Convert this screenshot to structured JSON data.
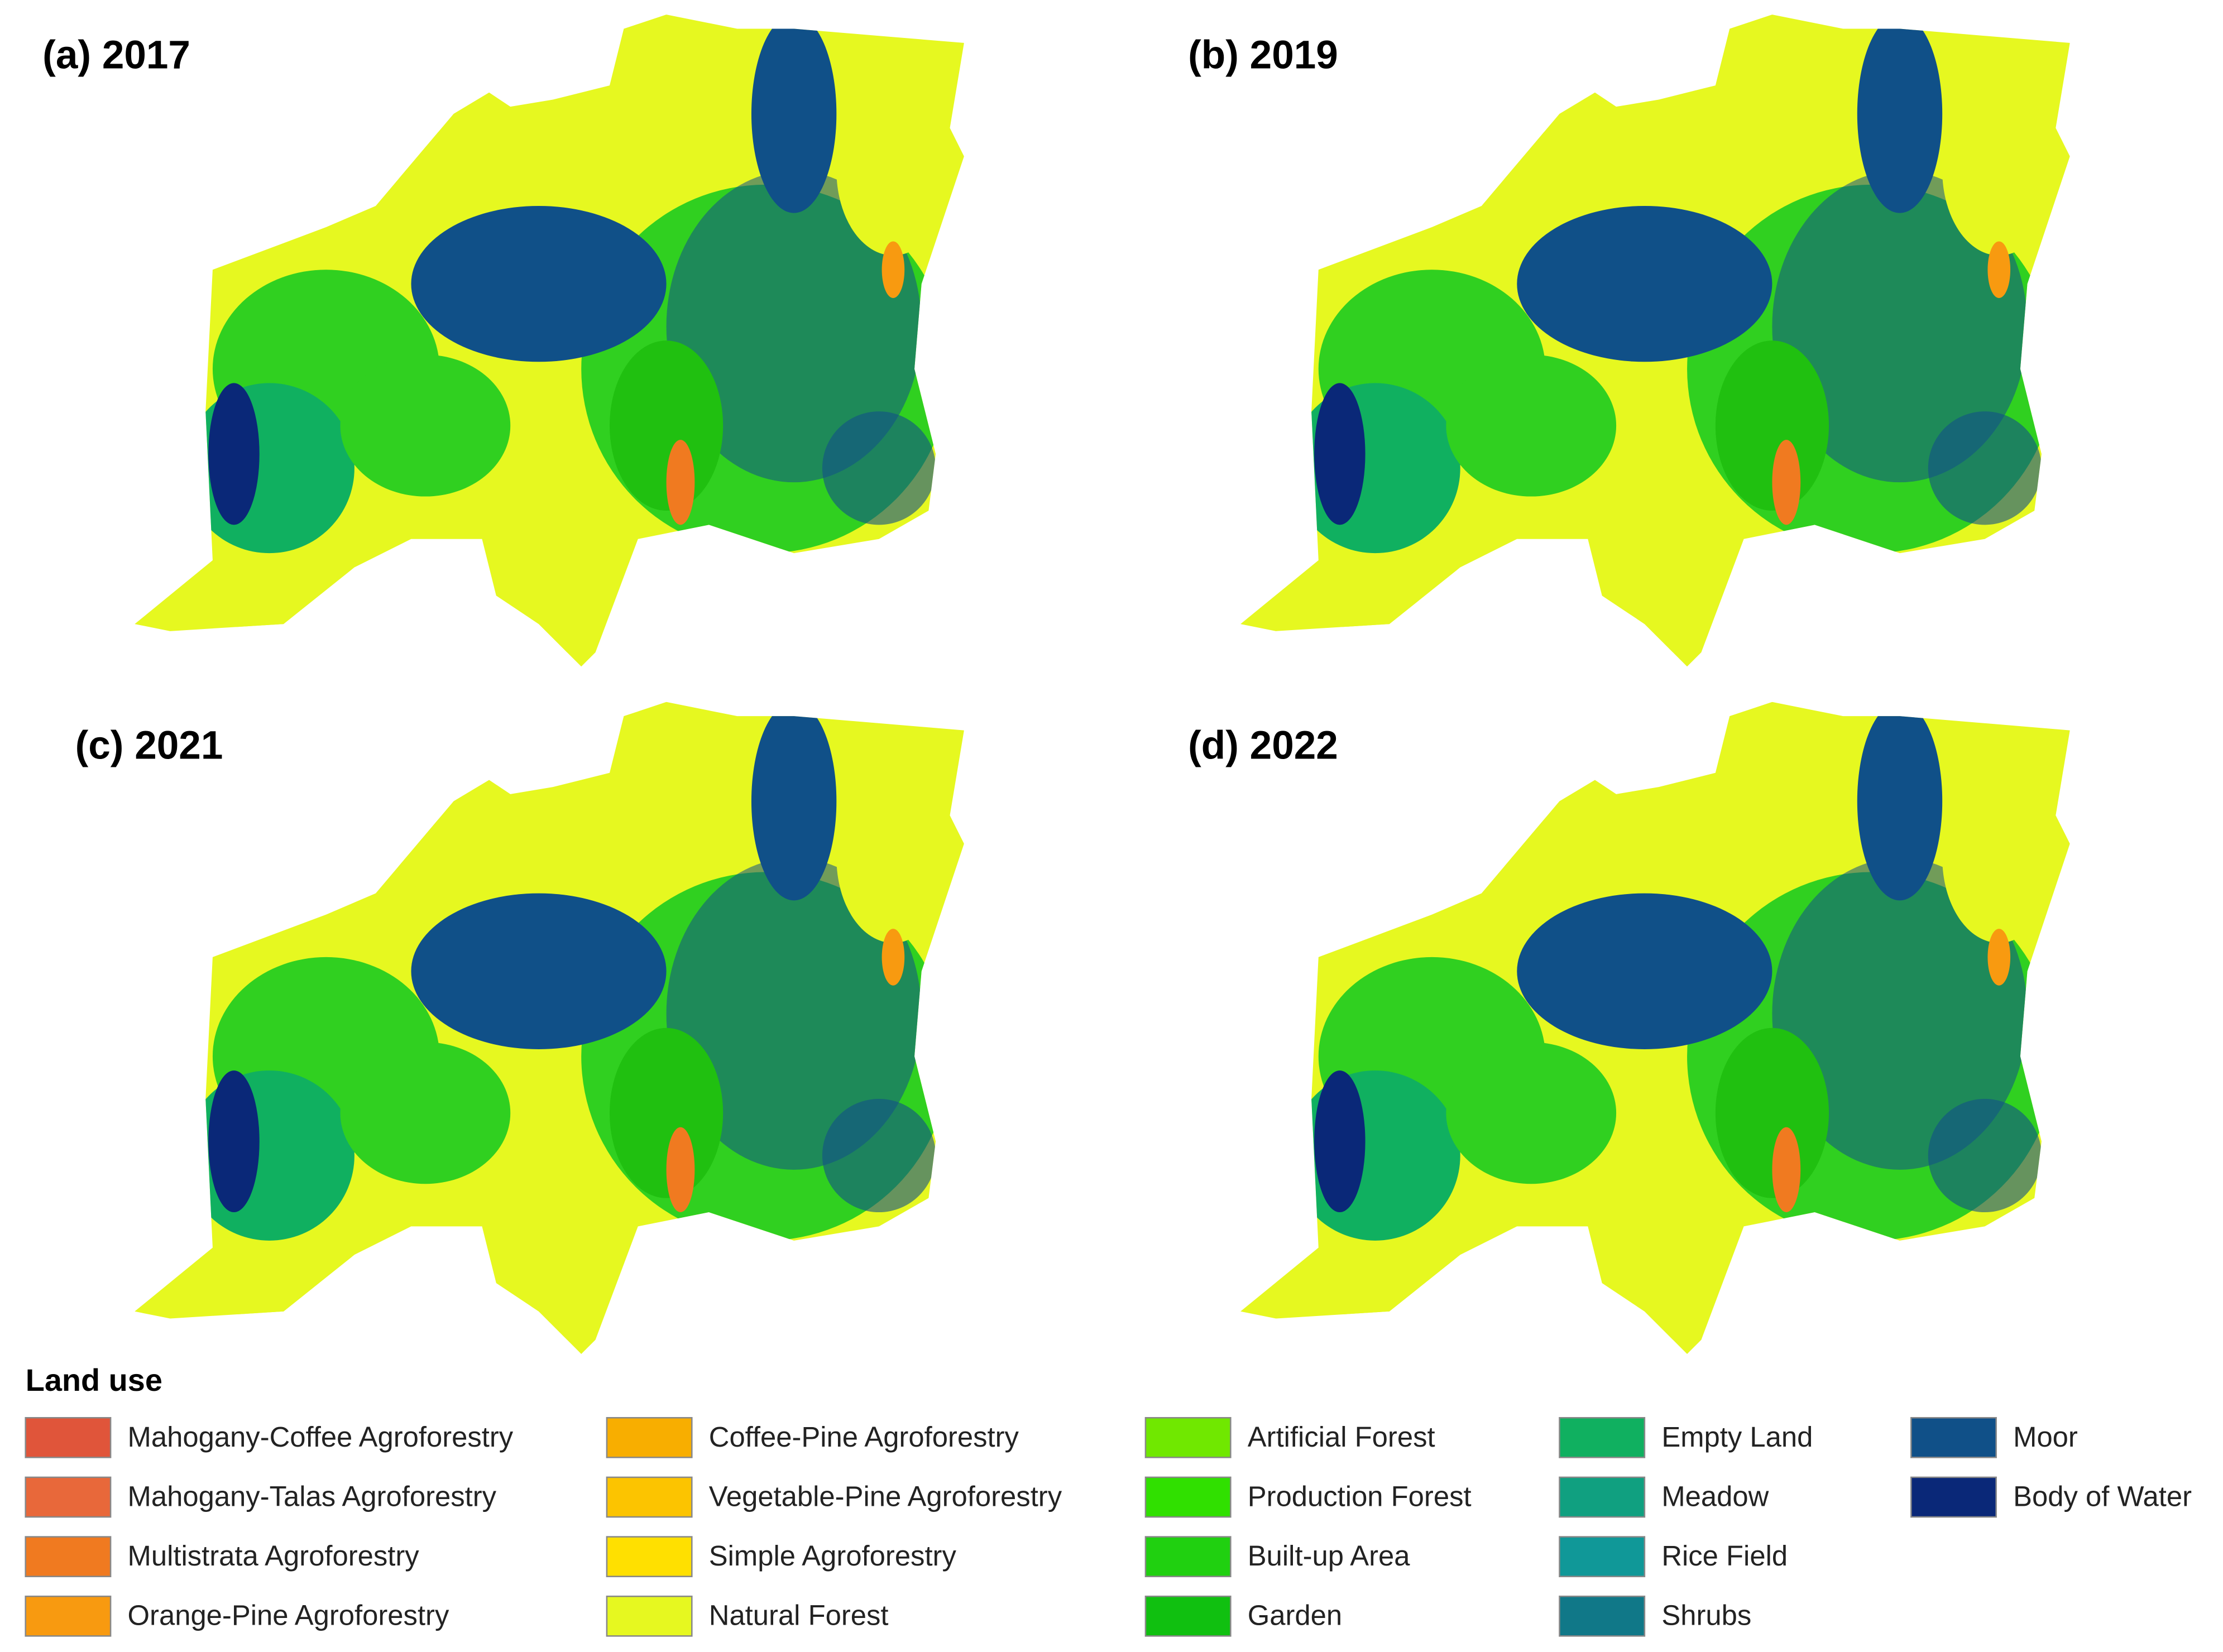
{
  "panels": [
    {
      "title": "(a) 2017"
    },
    {
      "title": "(b) 2019"
    },
    {
      "title": "(c) 2021"
    },
    {
      "title": "(d) 2022"
    }
  ],
  "legend": {
    "title": "Land use",
    "items": [
      {
        "label": "Mahogany-Coffee Agroforestry",
        "color": "#e0553a"
      },
      {
        "label": "Mahogany-Talas Agroforestry",
        "color": "#e8683a"
      },
      {
        "label": "Multistrata Agroforestry",
        "color": "#f07a20"
      },
      {
        "label": "Orange-Pine Agroforestry",
        "color": "#f89a10"
      },
      {
        "label": "Coffee-Pine Agroforestry",
        "color": "#f8ae00"
      },
      {
        "label": "Vegetable-Pine Agroforestry",
        "color": "#fcc400"
      },
      {
        "label": "Simple Agroforestry",
        "color": "#ffe000"
      },
      {
        "label": "Natural Forest",
        "color": "#e6f820"
      },
      {
        "label": "Artificial Forest",
        "color": "#70e800"
      },
      {
        "label": "Production Forest",
        "color": "#30e000"
      },
      {
        "label": "Built-up Area",
        "color": "#20d010"
      },
      {
        "label": "Garden",
        "color": "#10c010"
      },
      {
        "label": "Empty Land",
        "color": "#10b060"
      },
      {
        "label": "Meadow",
        "color": "#10a080"
      },
      {
        "label": "Rice Field",
        "color": "#109898"
      },
      {
        "label": "Shrubs",
        "color": "#107888"
      },
      {
        "label": "Moor",
        "color": "#105088"
      },
      {
        "label": "Body of Water",
        "color": "#0a2878"
      }
    ]
  }
}
